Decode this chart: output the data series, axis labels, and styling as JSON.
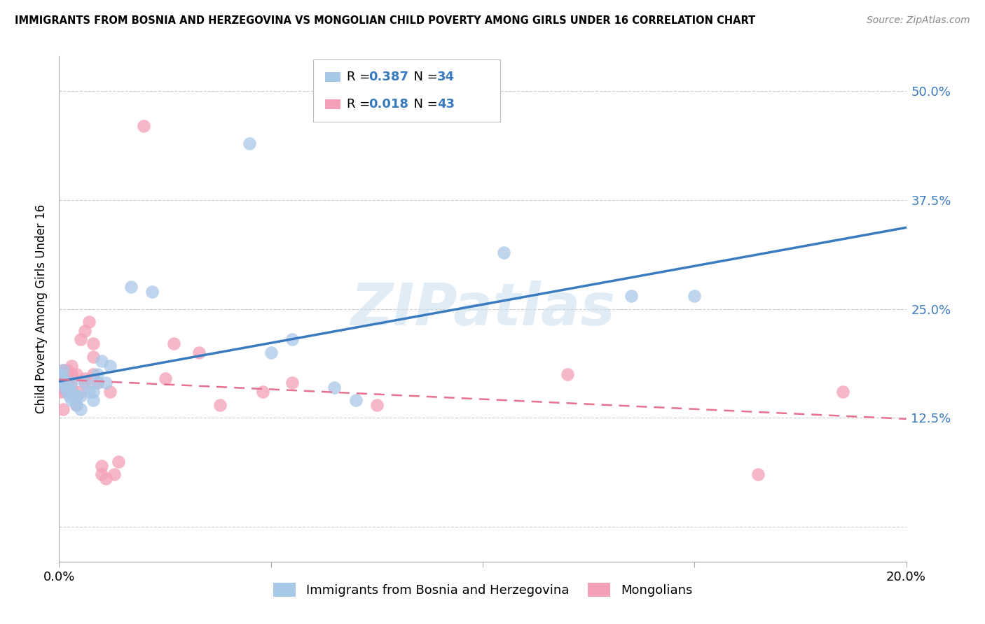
{
  "title": "IMMIGRANTS FROM BOSNIA AND HERZEGOVINA VS MONGOLIAN CHILD POVERTY AMONG GIRLS UNDER 16 CORRELATION CHART",
  "source": "Source: ZipAtlas.com",
  "ylabel": "Child Poverty Among Girls Under 16",
  "x_min": 0.0,
  "x_max": 0.2,
  "y_min": -0.04,
  "y_max": 0.54,
  "y_ticks": [
    0.0,
    0.125,
    0.25,
    0.375,
    0.5
  ],
  "y_tick_labels": [
    "",
    "12.5%",
    "25.0%",
    "37.5%",
    "50.0%"
  ],
  "x_ticks": [
    0.0,
    0.05,
    0.1,
    0.15,
    0.2
  ],
  "x_tick_labels": [
    "0.0%",
    "",
    "",
    "",
    "20.0%"
  ],
  "blue_R": 0.387,
  "blue_N": 34,
  "pink_R": 0.018,
  "pink_N": 43,
  "blue_color": "#a8c8e8",
  "pink_color": "#f4a0b8",
  "blue_line_color": "#3a7bbf",
  "pink_line_color": "#e87090",
  "accent_color": "#3a7bbf",
  "watermark": "ZIPatlas",
  "legend_label_blue": "Immigrants from Bosnia and Herzegovina",
  "legend_label_pink": "Mongolians",
  "blue_points_x": [
    0.0005,
    0.001,
    0.001,
    0.001,
    0.0015,
    0.002,
    0.002,
    0.0025,
    0.003,
    0.003,
    0.003,
    0.004,
    0.004,
    0.005,
    0.005,
    0.006,
    0.007,
    0.008,
    0.008,
    0.009,
    0.009,
    0.01,
    0.011,
    0.012,
    0.017,
    0.022,
    0.045,
    0.05,
    0.055,
    0.065,
    0.07,
    0.105,
    0.135,
    0.15
  ],
  "blue_points_y": [
    0.175,
    0.17,
    0.165,
    0.18,
    0.16,
    0.155,
    0.16,
    0.15,
    0.145,
    0.155,
    0.165,
    0.14,
    0.15,
    0.135,
    0.15,
    0.165,
    0.155,
    0.145,
    0.155,
    0.165,
    0.175,
    0.19,
    0.165,
    0.185,
    0.275,
    0.27,
    0.44,
    0.2,
    0.215,
    0.16,
    0.145,
    0.315,
    0.265,
    0.265
  ],
  "pink_points_x": [
    0.0005,
    0.001,
    0.001,
    0.001,
    0.001,
    0.0015,
    0.002,
    0.002,
    0.002,
    0.0025,
    0.003,
    0.003,
    0.003,
    0.003,
    0.004,
    0.004,
    0.005,
    0.005,
    0.006,
    0.006,
    0.006,
    0.007,
    0.008,
    0.008,
    0.008,
    0.009,
    0.01,
    0.01,
    0.011,
    0.012,
    0.013,
    0.014,
    0.02,
    0.025,
    0.027,
    0.033,
    0.038,
    0.048,
    0.055,
    0.075,
    0.12,
    0.165,
    0.185
  ],
  "pink_points_y": [
    0.155,
    0.175,
    0.18,
    0.16,
    0.135,
    0.155,
    0.165,
    0.17,
    0.18,
    0.155,
    0.16,
    0.175,
    0.17,
    0.185,
    0.14,
    0.175,
    0.155,
    0.215,
    0.165,
    0.17,
    0.225,
    0.235,
    0.195,
    0.175,
    0.21,
    0.165,
    0.06,
    0.07,
    0.055,
    0.155,
    0.06,
    0.075,
    0.46,
    0.17,
    0.21,
    0.2,
    0.14,
    0.155,
    0.165,
    0.14,
    0.175,
    0.06,
    0.155
  ]
}
